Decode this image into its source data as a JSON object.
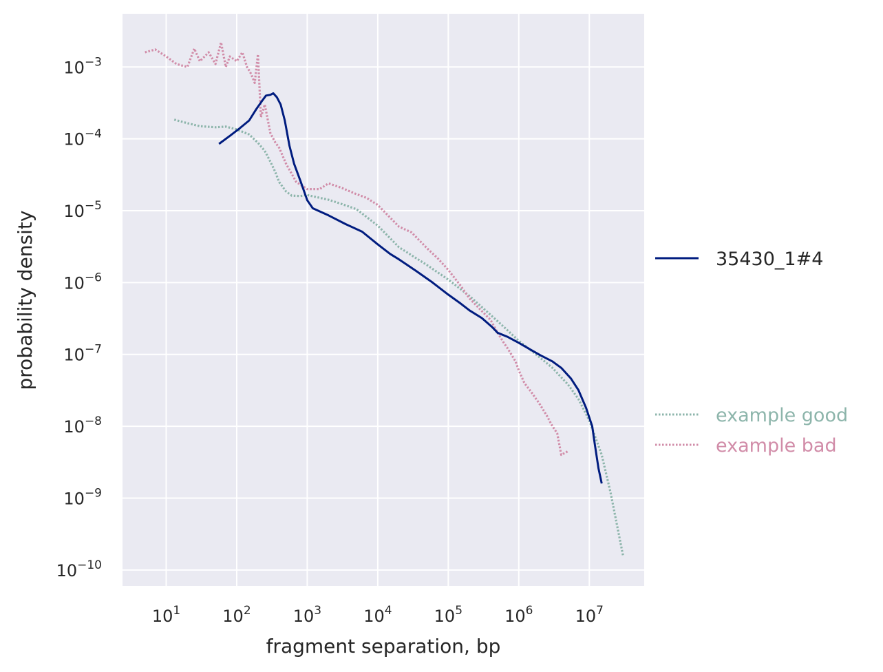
{
  "chart_data": {
    "type": "line",
    "xlabel": "fragment separation, bp",
    "ylabel": "probability density",
    "xscale": "log",
    "yscale": "log",
    "xlim": [
      2.4,
      60000000
    ],
    "ylim": [
      6e-11,
      0.0055
    ],
    "grid": true,
    "x_ticks": [
      {
        "value": 10,
        "base": "10",
        "exp": "1"
      },
      {
        "value": 100,
        "base": "10",
        "exp": "2"
      },
      {
        "value": 1000,
        "base": "10",
        "exp": "3"
      },
      {
        "value": 10000,
        "base": "10",
        "exp": "4"
      },
      {
        "value": 100000,
        "base": "10",
        "exp": "5"
      },
      {
        "value": 1000000,
        "base": "10",
        "exp": "6"
      },
      {
        "value": 10000000,
        "base": "10",
        "exp": "7"
      }
    ],
    "y_ticks": [
      {
        "value": 0.001,
        "base": "10",
        "exp": "−3"
      },
      {
        "value": 0.0001,
        "base": "10",
        "exp": "−4"
      },
      {
        "value": 1e-05,
        "base": "10",
        "exp": "−5"
      },
      {
        "value": 1e-06,
        "base": "10",
        "exp": "−6"
      },
      {
        "value": 1e-07,
        "base": "10",
        "exp": "−7"
      },
      {
        "value": 1e-08,
        "base": "10",
        "exp": "−8"
      },
      {
        "value": 1e-09,
        "base": "10",
        "exp": "−9"
      },
      {
        "value": 1e-10,
        "base": "10",
        "exp": "−10"
      }
    ],
    "series": [
      {
        "name": "35430_1#4",
        "color": "#001c7f",
        "style": "solid",
        "points": [
          [
            56,
            8.5e-05
          ],
          [
            80,
            0.00011
          ],
          [
            110,
            0.00014
          ],
          [
            150,
            0.00018
          ],
          [
            190,
            0.00026
          ],
          [
            230,
            0.00034
          ],
          [
            260,
            0.0004
          ],
          [
            300,
            0.00041
          ],
          [
            330,
            0.00043
          ],
          [
            370,
            0.00038
          ],
          [
            420,
            0.0003
          ],
          [
            480,
            0.00018
          ],
          [
            560,
            8e-05
          ],
          [
            650,
            4.5e-05
          ],
          [
            800,
            2.6e-05
          ],
          [
            1000,
            1.4e-05
          ],
          [
            1200,
            1.08e-05
          ],
          [
            2000,
            8.6e-06
          ],
          [
            3500,
            6.5e-06
          ],
          [
            6000,
            5.1e-06
          ],
          [
            10000,
            3.4e-06
          ],
          [
            15000,
            2.5e-06
          ],
          [
            20000,
            2.1e-06
          ],
          [
            35000,
            1.45e-06
          ],
          [
            60000,
            1e-06
          ],
          [
            100000,
            6.8e-07
          ],
          [
            150000,
            5.1e-07
          ],
          [
            200000,
            4.1e-07
          ],
          [
            300000,
            3.2e-07
          ],
          [
            420000,
            2.4e-07
          ],
          [
            500000,
            2e-07
          ],
          [
            700000,
            1.75e-07
          ],
          [
            1000000,
            1.45e-07
          ],
          [
            1500000,
            1.15e-07
          ],
          [
            2000000,
            9.8e-08
          ],
          [
            3000000,
            8e-08
          ],
          [
            4000000,
            6.5e-08
          ],
          [
            5500000,
            4.6e-08
          ],
          [
            7000000,
            3.2e-08
          ],
          [
            9000000,
            1.8e-08
          ],
          [
            11000000,
            1e-08
          ],
          [
            12000000,
            5.5e-09
          ],
          [
            13500000,
            2.6e-09
          ],
          [
            15000000,
            1.6e-09
          ]
        ]
      },
      {
        "name": "example good",
        "color": "#8db5ab",
        "style": "dotted",
        "points": [
          [
            13,
            0.000185
          ],
          [
            20,
            0.000165
          ],
          [
            30,
            0.00015
          ],
          [
            50,
            0.000145
          ],
          [
            70,
            0.000148
          ],
          [
            100,
            0.000135
          ],
          [
            150,
            0.000115
          ],
          [
            200,
            8.8e-05
          ],
          [
            250,
            6.8e-05
          ],
          [
            300,
            4.8e-05
          ],
          [
            350,
            3.5e-05
          ],
          [
            400,
            2.5e-05
          ],
          [
            500,
            1.85e-05
          ],
          [
            600,
            1.62e-05
          ],
          [
            800,
            1.6e-05
          ],
          [
            1000,
            1.65e-05
          ],
          [
            2000,
            1.42e-05
          ],
          [
            3000,
            1.25e-05
          ],
          [
            5000,
            1.05e-05
          ],
          [
            10000,
            6.2e-06
          ],
          [
            20000,
            3.1e-06
          ],
          [
            50000,
            1.75e-06
          ],
          [
            100000,
            1.1e-06
          ],
          [
            200000,
            6.5e-07
          ],
          [
            500000,
            2.9e-07
          ],
          [
            1000000,
            1.55e-07
          ],
          [
            2000000,
            9e-08
          ],
          [
            3000000,
            6.5e-08
          ],
          [
            5000000,
            3.8e-08
          ],
          [
            7000000,
            2.4e-08
          ],
          [
            10000000,
            1.2e-08
          ],
          [
            15000000,
            4e-09
          ],
          [
            20000000,
            1.2e-09
          ],
          [
            30000000,
            1.6e-10
          ]
        ]
      },
      {
        "name": "example bad",
        "color": "#d18ca8",
        "style": "dotted",
        "points": [
          [
            5,
            0.0016
          ],
          [
            7,
            0.00175
          ],
          [
            10,
            0.0014
          ],
          [
            14,
            0.0011
          ],
          [
            20,
            0.001
          ],
          [
            25,
            0.0018
          ],
          [
            30,
            0.0012
          ],
          [
            40,
            0.0016
          ],
          [
            50,
            0.0011
          ],
          [
            60,
            0.0022
          ],
          [
            70,
            0.001
          ],
          [
            80,
            0.0014
          ],
          [
            100,
            0.0012
          ],
          [
            120,
            0.0016
          ],
          [
            140,
            0.001
          ],
          [
            160,
            0.0008
          ],
          [
            180,
            0.0006
          ],
          [
            200,
            0.0015
          ],
          [
            220,
            0.0002
          ],
          [
            250,
            0.0003
          ],
          [
            300,
            0.00012
          ],
          [
            350,
            9e-05
          ],
          [
            400,
            7.5e-05
          ],
          [
            500,
            4.5e-05
          ],
          [
            700,
            2.5e-05
          ],
          [
            1000,
            2e-05
          ],
          [
            1500,
            2e-05
          ],
          [
            2000,
            2.4e-05
          ],
          [
            3000,
            2.1e-05
          ],
          [
            5000,
            1.7e-05
          ],
          [
            7000,
            1.5e-05
          ],
          [
            10000,
            1.2e-05
          ],
          [
            15000,
            8e-06
          ],
          [
            20000,
            6e-06
          ],
          [
            30000,
            5e-06
          ],
          [
            50000,
            3e-06
          ],
          [
            70000,
            2.2e-06
          ],
          [
            100000,
            1.5e-06
          ],
          [
            150000,
            9e-07
          ],
          [
            200000,
            6e-07
          ],
          [
            300000,
            4e-07
          ],
          [
            400000,
            3e-07
          ],
          [
            500000,
            2e-07
          ],
          [
            600000,
            1.5e-07
          ],
          [
            700000,
            1.2e-07
          ],
          [
            900000,
            8e-08
          ],
          [
            1000000,
            6e-08
          ],
          [
            1200000,
            4e-08
          ],
          [
            1500000,
            3e-08
          ],
          [
            2000000,
            2e-08
          ],
          [
            2500000,
            1.4e-08
          ],
          [
            3000000,
            1e-08
          ],
          [
            3500000,
            8e-09
          ],
          [
            4000000,
            4e-09
          ],
          [
            5000000,
            4.5e-09
          ]
        ]
      }
    ],
    "legend": {
      "placement": "right",
      "entries": [
        {
          "label": "35430_1#4",
          "color": "#001c7f",
          "style": "solid",
          "text_color": "#262626"
        },
        {
          "label": "example good",
          "color": "#8db5ab",
          "style": "dotted",
          "text_color": "#8db5ab"
        },
        {
          "label": "example bad",
          "color": "#d18ca8",
          "style": "dotted",
          "text_color": "#d18ca8"
        }
      ]
    }
  }
}
